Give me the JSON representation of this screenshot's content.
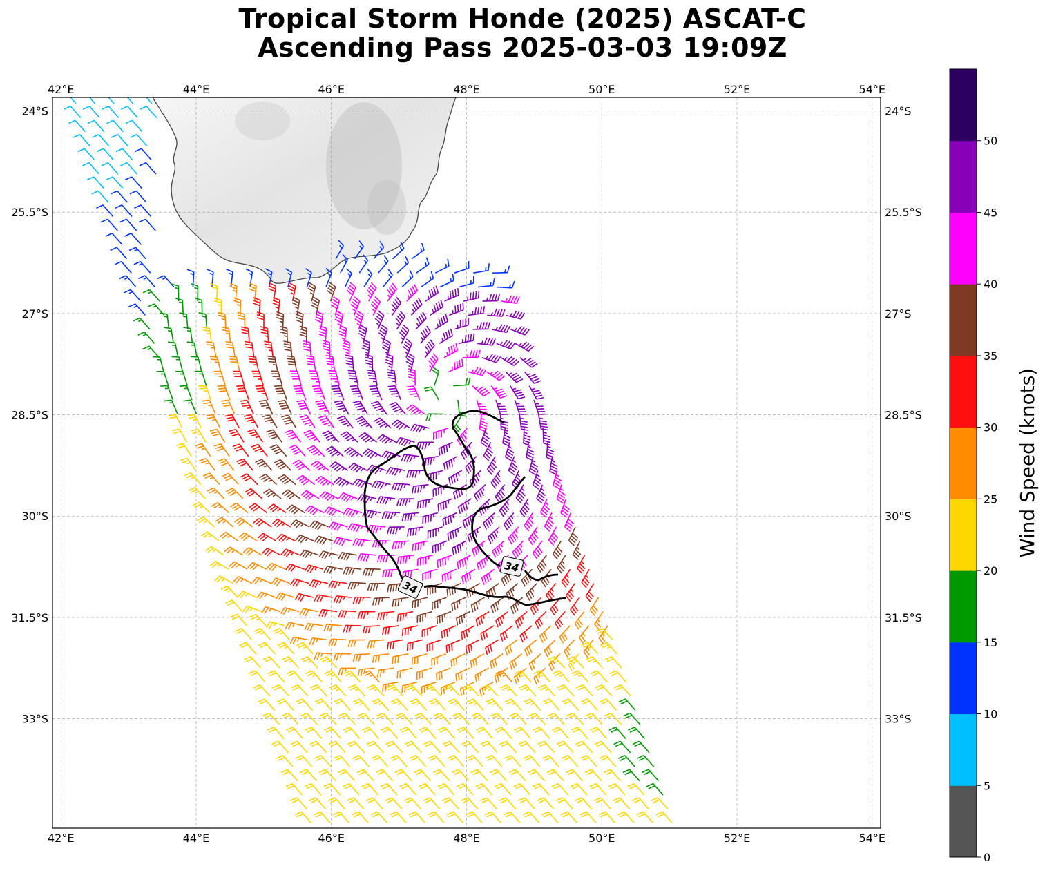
{
  "title": {
    "line1": "Tropical Storm Honde (2025) ASCAT-C",
    "line2": "Ascending Pass 2025-03-03 19:09Z"
  },
  "map": {
    "lon_range": [
      41.875,
      54.125
    ],
    "lat_range": [
      -34.62,
      -23.8
    ],
    "lon_ticks": [
      "42°E",
      "44°E",
      "46°E",
      "48°E",
      "50°E",
      "52°E",
      "54°E"
    ],
    "lon_tick_values": [
      42,
      44,
      46,
      48,
      50,
      52,
      54
    ],
    "lat_ticks": [
      "24°S",
      "25.5°S",
      "27°S",
      "28.5°S",
      "30°S",
      "31.5°S",
      "33°S"
    ],
    "lat_tick_values": [
      -24,
      -25.5,
      -27,
      -28.5,
      -30,
      -31.5,
      -33
    ],
    "grid": "dashed",
    "land_color": "#eeeeee",
    "coast_color": "#444444",
    "contour_label": "34",
    "contour_color": "#000000"
  },
  "colorbar": {
    "label": "Wind Speed (knots)",
    "ticks": [
      "0",
      "5",
      "10",
      "15",
      "20",
      "25",
      "30",
      "35",
      "40",
      "45",
      "50"
    ],
    "bins": [
      {
        "min": 0,
        "max": 5,
        "color": "#555555"
      },
      {
        "min": 5,
        "max": 10,
        "color": "#00bfff"
      },
      {
        "min": 10,
        "max": 15,
        "color": "#0033ff"
      },
      {
        "min": 15,
        "max": 20,
        "color": "#009900"
      },
      {
        "min": 20,
        "max": 25,
        "color": "#ffd700"
      },
      {
        "min": 25,
        "max": 30,
        "color": "#ff8c00"
      },
      {
        "min": 30,
        "max": 35,
        "color": "#ff0f0f"
      },
      {
        "min": 35,
        "max": 40,
        "color": "#7f3a24"
      },
      {
        "min": 40,
        "max": 45,
        "color": "#ff00ff"
      },
      {
        "min": 45,
        "max": 50,
        "color": "#8800b8"
      },
      {
        "min": 50,
        "max": 55,
        "color": "#2b005e"
      }
    ]
  },
  "storm_center": {
    "lon": 47.75,
    "lat": -28.25
  }
}
